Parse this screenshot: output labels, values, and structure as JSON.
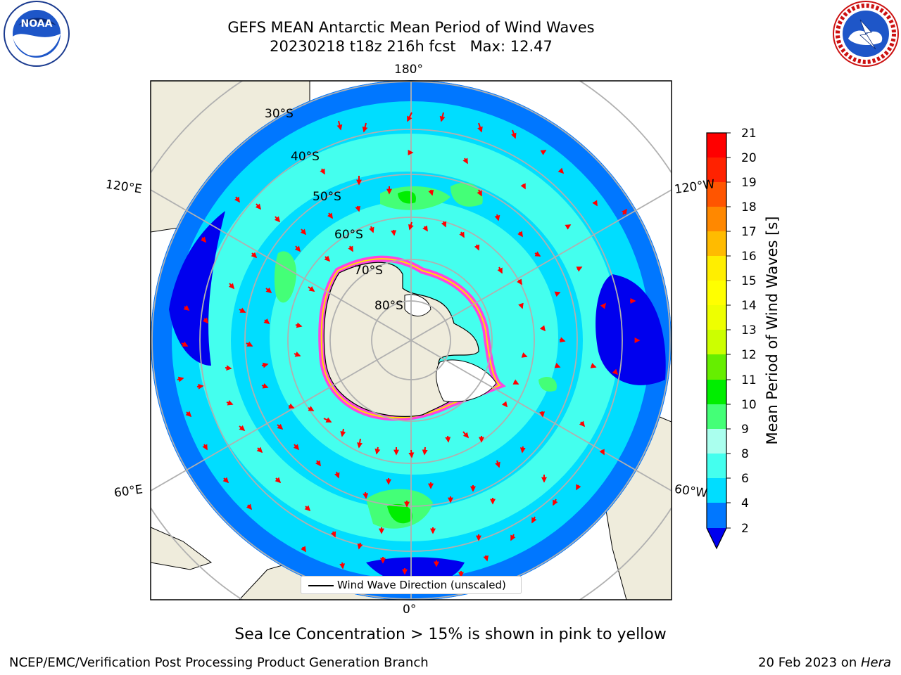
{
  "header": {
    "title_line1": "GEFS MEAN Antarctic Mean Period of Wind Waves",
    "title_line2": "20230218 t18z 216h fcst   Max: 12.47"
  },
  "logos": {
    "left": "NOAA",
    "left_ring_text": "NATIONAL OCEANIC AND ATMOSPHERIC ADMINISTRATION · U.S. DEPARTMENT OF COMMERCE",
    "right_ring_text": "NATIONAL WEATHER SERVICE"
  },
  "map": {
    "projection": "south-polar stereographic",
    "longitude_labels": {
      "top": "180°",
      "bottom": "0°",
      "left_upper": "120°E",
      "left_lower": "60°E",
      "right_upper": "120°W",
      "right_lower": "60°W"
    },
    "latitude_labels": [
      "30°S",
      "40°S",
      "50°S",
      "60°S",
      "70°S",
      "80°S"
    ],
    "colors": {
      "land": "#efecdc",
      "coast": "#000000",
      "grid": "#b0b0b0",
      "arrow": "#ff0000",
      "ice_pink": "#ff44dd",
      "ice_yellow": "#ffe000"
    },
    "legend_label": "Wind Wave Direction (unscaled)"
  },
  "colorbar": {
    "title": "Mean Period of Wind Waves [s]",
    "ticks": [
      "2",
      "4",
      "6",
      "8",
      "9",
      "10",
      "11",
      "12",
      "13",
      "14",
      "15",
      "16",
      "17",
      "18",
      "19",
      "20",
      "21"
    ],
    "colors": [
      "#0000ee",
      "#0077ff",
      "#00ddff",
      "#44ffee",
      "#aaffee",
      "#44ff77",
      "#00ee00",
      "#66ee00",
      "#ccff00",
      "#eeff00",
      "#ffff00",
      "#ffee00",
      "#ffbb00",
      "#ff8800",
      "#ff5500",
      "#ff2200",
      "#ff0000"
    ]
  },
  "footer": {
    "subtitle": "Sea Ice Concentration > 15% is shown in pink to yellow",
    "left": "NCEP/EMC/Verification Post Processing Product Generation Branch",
    "right_prefix": "20 Feb 2023 on ",
    "right_host": "Hera"
  }
}
